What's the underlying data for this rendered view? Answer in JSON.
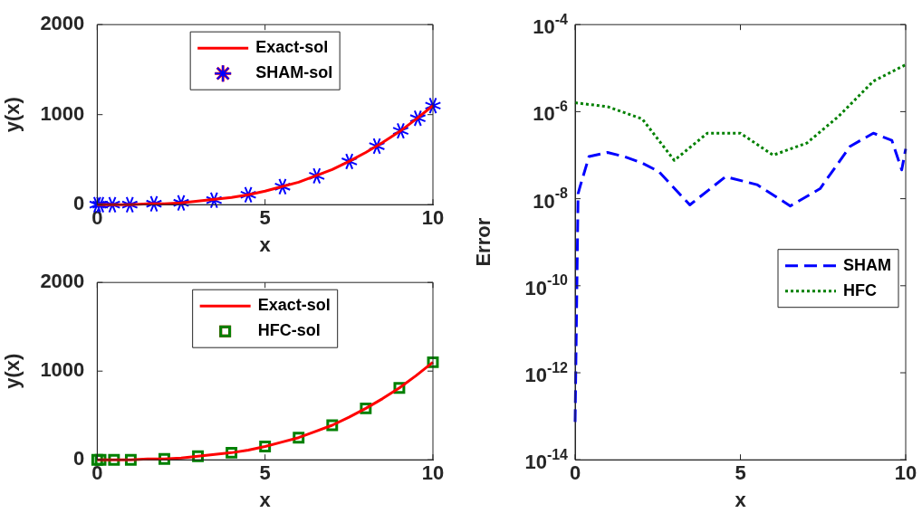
{
  "chart_data": [
    {
      "type": "line",
      "xlabel": "x",
      "ylabel": "y(x)",
      "xlim": [
        0,
        10
      ],
      "xticks": [
        0,
        5,
        10
      ],
      "ylim": [
        0,
        2000
      ],
      "yticks": [
        0,
        1000,
        2000
      ],
      "grid": false,
      "legend": "top",
      "series": [
        {
          "name": "Exact-sol",
          "type": "line",
          "color": "#ff0000",
          "marker": "none",
          "line_style": "solid",
          "x": [
            0,
            0.5,
            1,
            1.5,
            2,
            2.5,
            3,
            3.5,
            4,
            4.5,
            5,
            5.5,
            6,
            6.5,
            7,
            7.5,
            8,
            8.5,
            9,
            9.5,
            10
          ],
          "values": [
            0,
            0,
            0,
            10,
            10,
            20,
            40,
            60,
            80,
            110,
            150,
            200,
            250,
            320,
            390,
            480,
            580,
            690,
            810,
            950,
            1100
          ]
        },
        {
          "name": "SHAM-sol",
          "type": "scatter",
          "color": "#0000ff",
          "marker": "cross",
          "x": [
            0,
            0.09,
            0.45,
            0.97,
            1.69,
            2.5,
            3.48,
            4.5,
            5.52,
            6.54,
            7.51,
            8.33,
            9.04,
            9.55,
            10
          ],
          "values": [
            0,
            0,
            0,
            0,
            10,
            20,
            50,
            110,
            200,
            320,
            480,
            650,
            820,
            960,
            1100
          ]
        }
      ]
    },
    {
      "type": "line",
      "xlabel": "x",
      "ylabel": "y(x)",
      "xlim": [
        0,
        10
      ],
      "xticks": [
        0,
        5,
        10
      ],
      "ylim": [
        0,
        2000
      ],
      "yticks": [
        0,
        1000,
        2000
      ],
      "grid": false,
      "legend": "top",
      "series": [
        {
          "name": "Exact-sol",
          "type": "line",
          "color": "#ff0000",
          "marker": "none",
          "line_style": "solid",
          "x": [
            0,
            0.5,
            1,
            1.5,
            2,
            2.5,
            3,
            3.5,
            4,
            4.5,
            5,
            5.5,
            6,
            6.5,
            7,
            7.5,
            8,
            8.5,
            9,
            9.5,
            10
          ],
          "values": [
            0,
            0,
            0,
            10,
            10,
            20,
            40,
            60,
            80,
            110,
            150,
            200,
            250,
            320,
            390,
            480,
            580,
            690,
            810,
            950,
            1100
          ]
        },
        {
          "name": "HFC-sol",
          "type": "scatter",
          "color": "#008000",
          "marker": "square",
          "x": [
            0,
            0.1,
            0.5,
            1,
            2,
            3,
            4,
            5,
            6,
            7,
            8,
            9,
            10
          ],
          "values": [
            0,
            0,
            0,
            0,
            10,
            40,
            80,
            150,
            250,
            390,
            580,
            810,
            1100
          ]
        }
      ]
    },
    {
      "type": "line",
      "xlabel": "x",
      "ylabel": "Error",
      "log": "y",
      "xlim": [
        0,
        10
      ],
      "xticks": [
        0,
        5,
        10
      ],
      "ylim": [
        1e-14,
        0.0001
      ],
      "yticks": [
        {
          "value": 1e-14,
          "label": "10$^{-14}$"
        },
        {
          "value": 1e-12,
          "label": "10$^{-12}$"
        },
        {
          "value": 1e-10,
          "label": "10$^{-10}$"
        },
        {
          "value": 1e-08,
          "label": "10$^{-8}$"
        },
        {
          "value": 1e-06,
          "label": "10$^{-6}$"
        },
        {
          "value": 0.0001,
          "label": "10$^{-4}$"
        }
      ],
      "grid": false,
      "legend": "right",
      "series": [
        {
          "name": "SHAM",
          "type": "line",
          "color": "#0000ff",
          "marker": "none",
          "line_style": "dashed",
          "x": [
            0,
            0.09,
            0.15,
            0.42,
            0.98,
            1.48,
            2.03,
            2.53,
            3.47,
            4.55,
            5.5,
            6.51,
            7.41,
            8.32,
            9.02,
            9.58,
            9.88,
            10
          ],
          "values": [
            7.4e-14,
            1.3e-08,
            1.9e-08,
            9.3e-08,
            1.15e-07,
            9.3e-08,
            6.6e-08,
            4.2e-08,
            7.2e-09,
            3.2e-08,
            2.1e-08,
            6.8e-09,
            1.7e-08,
            1.6e-07,
            3.2e-07,
            2.2e-07,
            4.6e-08,
            1.4e-07
          ]
        },
        {
          "name": "HFC",
          "type": "line",
          "color": "#008000",
          "marker": "none",
          "line_style": "dotted",
          "x": [
            0,
            0.98,
            2.03,
            3,
            4,
            5,
            5.99,
            7.01,
            7.97,
            9.02,
            10
          ],
          "values": [
            1.6e-06,
            1.3e-06,
            6.8e-07,
            7.6e-08,
            3.2e-07,
            3.2e-07,
            1e-07,
            1.9e-07,
            7.8e-07,
            5e-06,
            1.2e-05
          ]
        }
      ]
    }
  ]
}
